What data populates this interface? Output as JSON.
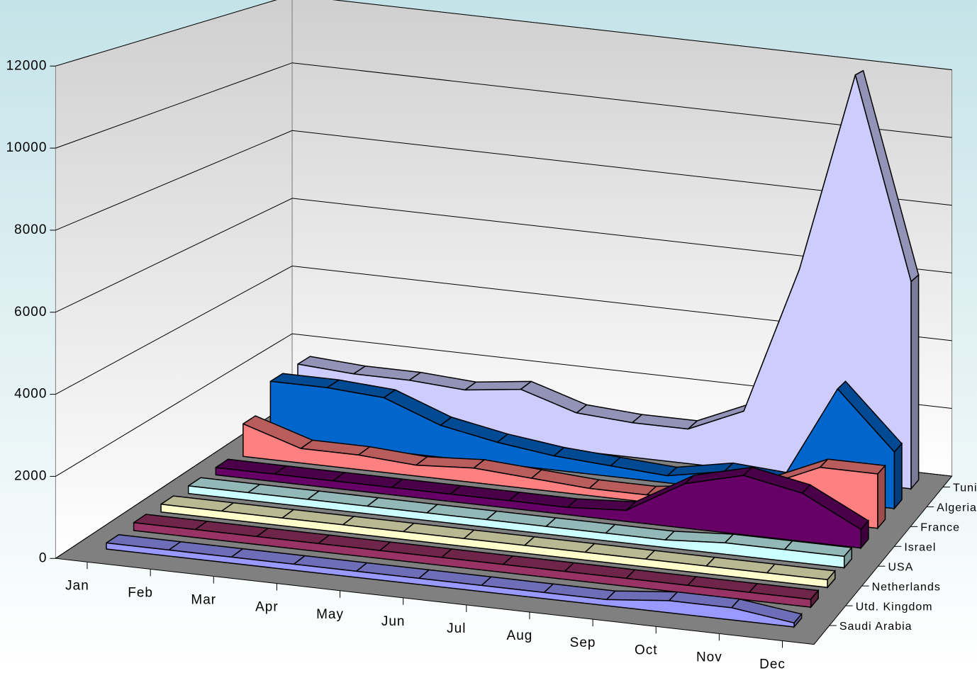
{
  "chart_data": {
    "type": "area",
    "categories": [
      "Jan",
      "Feb",
      "Mar",
      "Apr",
      "May",
      "Jun",
      "Jul",
      "Aug",
      "Sep",
      "Oct",
      "Nov",
      "Dec"
    ],
    "ylim": [
      0,
      12000
    ],
    "yticks": [
      0,
      2000,
      4000,
      6000,
      8000,
      10000,
      12000
    ],
    "grid": true,
    "series": [
      {
        "name": "Tunisia",
        "color": "#ccccff",
        "values": [
          1600,
          1500,
          1500,
          1400,
          1600,
          1100,
          1000,
          1000,
          1700,
          6000,
          11800,
          6000
        ]
      },
      {
        "name": "Algeria",
        "color": "#0066cc",
        "values": [
          1600,
          1600,
          1500,
          900,
          600,
          400,
          300,
          200,
          500,
          400,
          3200,
          1600
        ]
      },
      {
        "name": "France",
        "color": "#ff8080",
        "values": [
          900,
          400,
          400,
          300,
          400,
          300,
          200,
          200,
          400,
          800,
          1500,
          1500
        ]
      },
      {
        "name": "Israel",
        "color": "#660066",
        "values": [
          200,
          200,
          200,
          200,
          200,
          200,
          200,
          300,
          1200,
          1600,
          1300,
          500
        ]
      },
      {
        "name": "USA",
        "color": "#ccffff",
        "values": [
          200,
          200,
          200,
          200,
          200,
          200,
          200,
          200,
          200,
          300,
          300,
          300
        ]
      },
      {
        "name": "Netherlands",
        "color": "#ffffcc",
        "values": [
          200,
          200,
          200,
          200,
          200,
          200,
          200,
          200,
          200,
          200,
          200,
          200
        ]
      },
      {
        "name": "Utd. Kingdom",
        "color": "#993366",
        "values": [
          200,
          200,
          200,
          200,
          200,
          200,
          200,
          200,
          200,
          200,
          200,
          200
        ]
      },
      {
        "name": "Saudi Arabia",
        "color": "#9999ff",
        "values": [
          150,
          150,
          150,
          150,
          150,
          150,
          150,
          150,
          150,
          300,
          300,
          100
        ]
      }
    ]
  }
}
